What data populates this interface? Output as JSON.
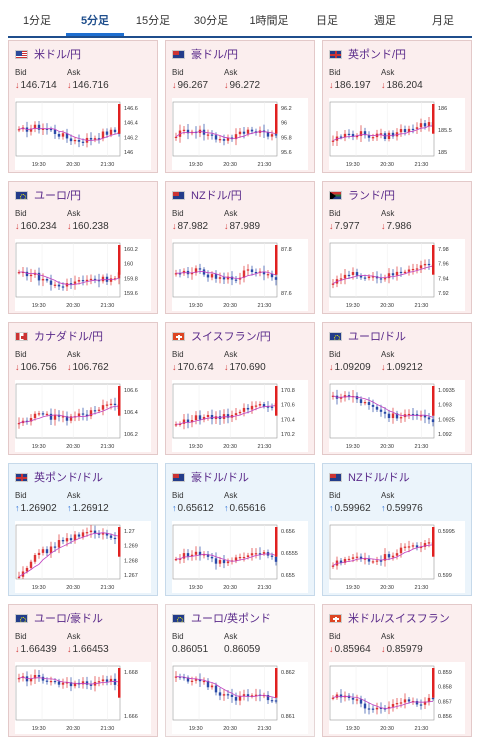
{
  "tabs": [
    {
      "label": "1分足",
      "active": false
    },
    {
      "label": "5分足",
      "active": true
    },
    {
      "label": "15分足",
      "active": false
    },
    {
      "label": "30分足",
      "active": false
    },
    {
      "label": "1時間足",
      "active": false
    },
    {
      "label": "日足",
      "active": false
    },
    {
      "label": "週足",
      "active": false
    },
    {
      "label": "月足",
      "active": false
    }
  ],
  "labels": {
    "bid": "Bid",
    "ask": "Ask"
  },
  "x_ticks": [
    "19:30",
    "20:30",
    "21:30"
  ],
  "cards": [
    {
      "pair": "米ドル/円",
      "bid": "146.714",
      "ask": "146.716",
      "direction": "down",
      "bg": "down",
      "flag": "us-flag-icon",
      "ticks": [
        "146.6",
        "146.4",
        "146.2",
        "146"
      ],
      "trend": "down-spike"
    },
    {
      "pair": "豪ドル/円",
      "bid": "96.267",
      "ask": "96.272",
      "direction": "down",
      "bg": "down",
      "flag": "au-flag-icon",
      "ticks": [
        "96.2",
        "96",
        "95.8",
        "95.6"
      ],
      "trend": "flat-spike"
    },
    {
      "pair": "英ポンド/円",
      "bid": "186.197",
      "ask": "186.204",
      "direction": "down",
      "bg": "down",
      "flag": "gb-flag-icon",
      "ticks": [
        "186",
        "185.5",
        "185"
      ],
      "trend": "up-spike"
    },
    {
      "pair": "ユーロ/円",
      "bid": "160.234",
      "ask": "160.238",
      "direction": "down",
      "bg": "down",
      "flag": "eu-flag-icon",
      "ticks": [
        "160.2",
        "160",
        "159.8",
        "159.6"
      ],
      "trend": "dip-spike"
    },
    {
      "pair": "NZドル/円",
      "bid": "87.982",
      "ask": "87.989",
      "direction": "down",
      "bg": "down",
      "flag": "nz-flag-icon",
      "ticks": [
        "87.8",
        "87.6"
      ],
      "trend": "flat-spike"
    },
    {
      "pair": "ランド/円",
      "bid": "7.977",
      "ask": "7.986",
      "direction": "down",
      "bg": "down",
      "flag": "za-flag-icon",
      "ticks": [
        "7.98",
        "7.96",
        "7.94",
        "7.92"
      ],
      "trend": "up-spike"
    },
    {
      "pair": "カナダドル/円",
      "bid": "106.756",
      "ask": "106.762",
      "direction": "down",
      "bg": "down",
      "flag": "ca-flag-icon",
      "ticks": [
        "106.6",
        "106.4",
        "106.2"
      ],
      "trend": "up-spike"
    },
    {
      "pair": "スイスフラン/円",
      "bid": "170.674",
      "ask": "170.690",
      "direction": "down",
      "bg": "down",
      "flag": "ch-flag-icon",
      "ticks": [
        "170.8",
        "170.6",
        "170.4",
        "170.2"
      ],
      "trend": "up-flat"
    },
    {
      "pair": "ユーロ/ドル",
      "bid": "1.09209",
      "ask": "1.09212",
      "direction": "down",
      "bg": "down",
      "flag": "eu-us-flag-icon",
      "ticks": [
        "1.0935",
        "1.093",
        "1.0925",
        "1.092"
      ],
      "trend": "down-flat"
    },
    {
      "pair": "英ポンド/ドル",
      "bid": "1.26902",
      "ask": "1.26912",
      "direction": "up",
      "bg": "up",
      "flag": "gb-flag-icon",
      "ticks": [
        "1.27",
        "1.269",
        "1.268",
        "1.267"
      ],
      "trend": "rise-flat"
    },
    {
      "pair": "豪ドル/ドル",
      "bid": "0.65612",
      "ask": "0.65616",
      "direction": "up",
      "bg": "up",
      "flag": "au-flag-icon",
      "ticks": [
        "0.656",
        "0.6555",
        "0.655"
      ],
      "trend": "flat-spike"
    },
    {
      "pair": "NZドル/ドル",
      "bid": "0.59962",
      "ask": "0.59976",
      "direction": "up",
      "bg": "up",
      "flag": "nz-flag-icon",
      "ticks": [
        "0.5995",
        "0.599"
      ],
      "trend": "up-flat"
    },
    {
      "pair": "ユーロ/豪ドル",
      "bid": "1.66439",
      "ask": "1.66453",
      "direction": "down",
      "bg": "down",
      "flag": "eu-flag-icon",
      "ticks": [
        "1.668",
        "1.666"
      ],
      "trend": "flat-drop"
    },
    {
      "pair": "ユーロ/英ポンド",
      "bid": "0.86051",
      "ask": "0.86059",
      "direction": "none",
      "bg": "neutral",
      "flag": "eu-flag-icon",
      "ticks": [
        "0.862",
        "0.861"
      ],
      "trend": "down-flat"
    },
    {
      "pair": "米ドル/スイスフラン",
      "bid": "0.85964",
      "ask": "0.85979",
      "direction": "down",
      "bg": "down",
      "flag": "ch-flag-icon",
      "ticks": [
        "0.859",
        "0.858",
        "0.857",
        "0.856"
      ],
      "trend": "dip-spike"
    }
  ]
}
